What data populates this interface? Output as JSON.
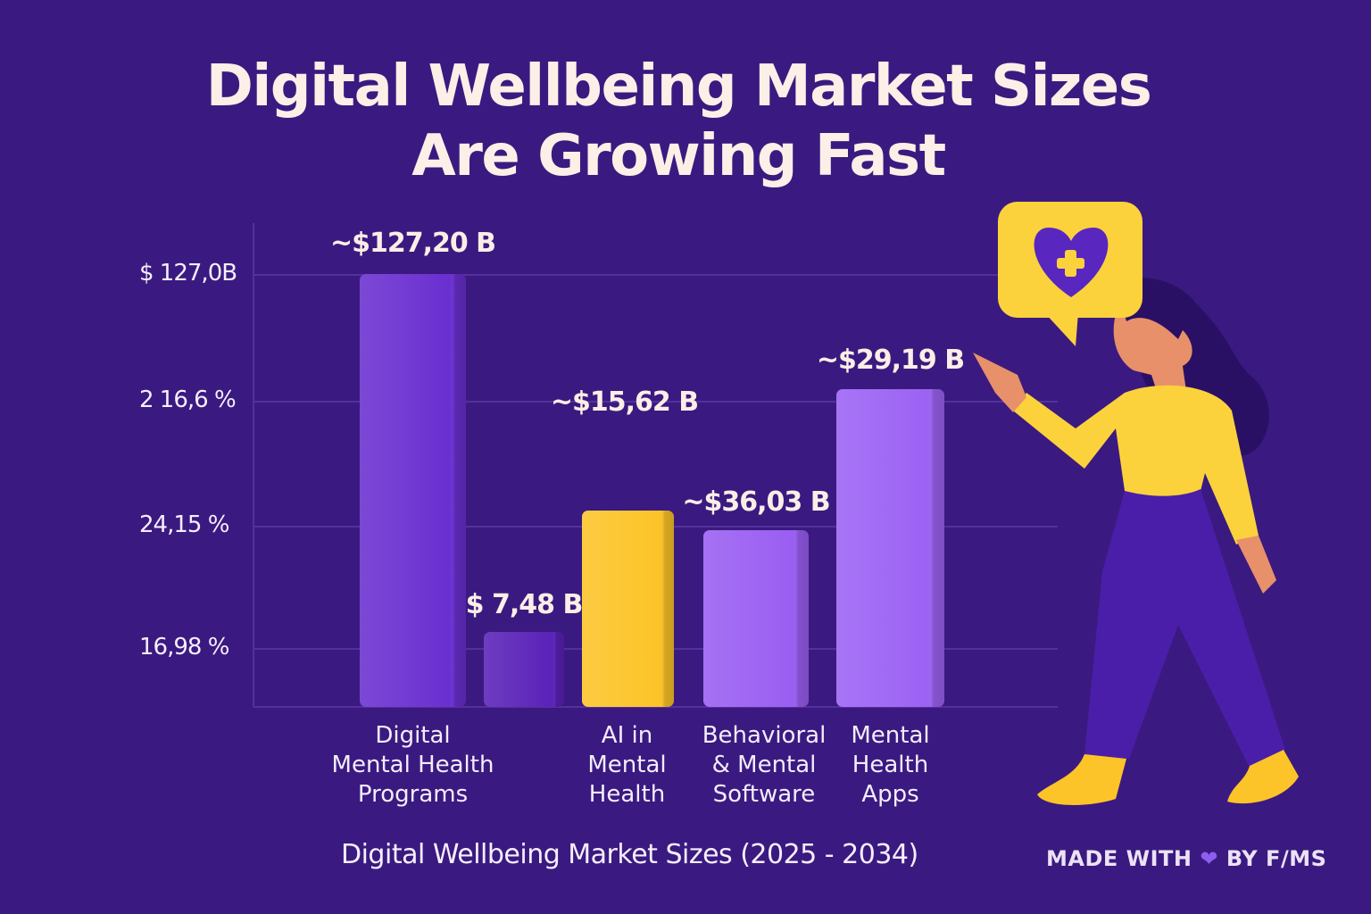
{
  "title": {
    "line1": "Digital Wellbeing Market Sizes",
    "line2": "Are Growing Fast"
  },
  "chart_data": {
    "type": "bar",
    "title": "Digital Wellbeing Market Sizes Are Growing Fast",
    "xlabel": "Digital Wellbeing Market Sizes (2025 - 2034)",
    "ylabel": "",
    "y_tick_labels": [
      "$ 127,0B",
      "2 16,6 %",
      "24,15 %",
      "16,98 %"
    ],
    "grid": true,
    "bars": [
      {
        "category": "Digital Mental Health Programs",
        "category_lines": [
          "Digital",
          "Mental Health",
          "Programs"
        ],
        "value": 127.2,
        "label": "~$127,20 B",
        "color": "#6a2fd0"
      },
      {
        "category": "",
        "category_lines": [],
        "value": 7.48,
        "label": "$ 7,48 B",
        "color": "#5a22b8"
      },
      {
        "category": "AI in Mental Health",
        "category_lines": [
          "AI in",
          "Mental",
          "Health"
        ],
        "value": 15.62,
        "label": "~$15,62 B",
        "color": "#fcc428"
      },
      {
        "category": "Behavioral & Mental Software",
        "category_lines": [
          "Behavioral",
          "& Mental",
          "Software"
        ],
        "value": 36.03,
        "label": "~$36,03 B",
        "color": "#9a5ef2"
      },
      {
        "category": "Mental Health Apps",
        "category_lines": [
          "Mental",
          "Health",
          "Apps"
        ],
        "value": 29.19,
        "label": "~$29,19 B",
        "color": "#9c62f4"
      }
    ]
  },
  "footer": {
    "subtitle": "Digital Wellbeing Market Sizes (2025 - 2034)",
    "credit_pre": "MADE WITH",
    "credit_icon": "heart-icon",
    "credit_post": "BY F/MS"
  },
  "colors": {
    "background": "#3a1a80",
    "accent_yellow": "#fcc428",
    "accent_purple": "#6a2fd0"
  }
}
